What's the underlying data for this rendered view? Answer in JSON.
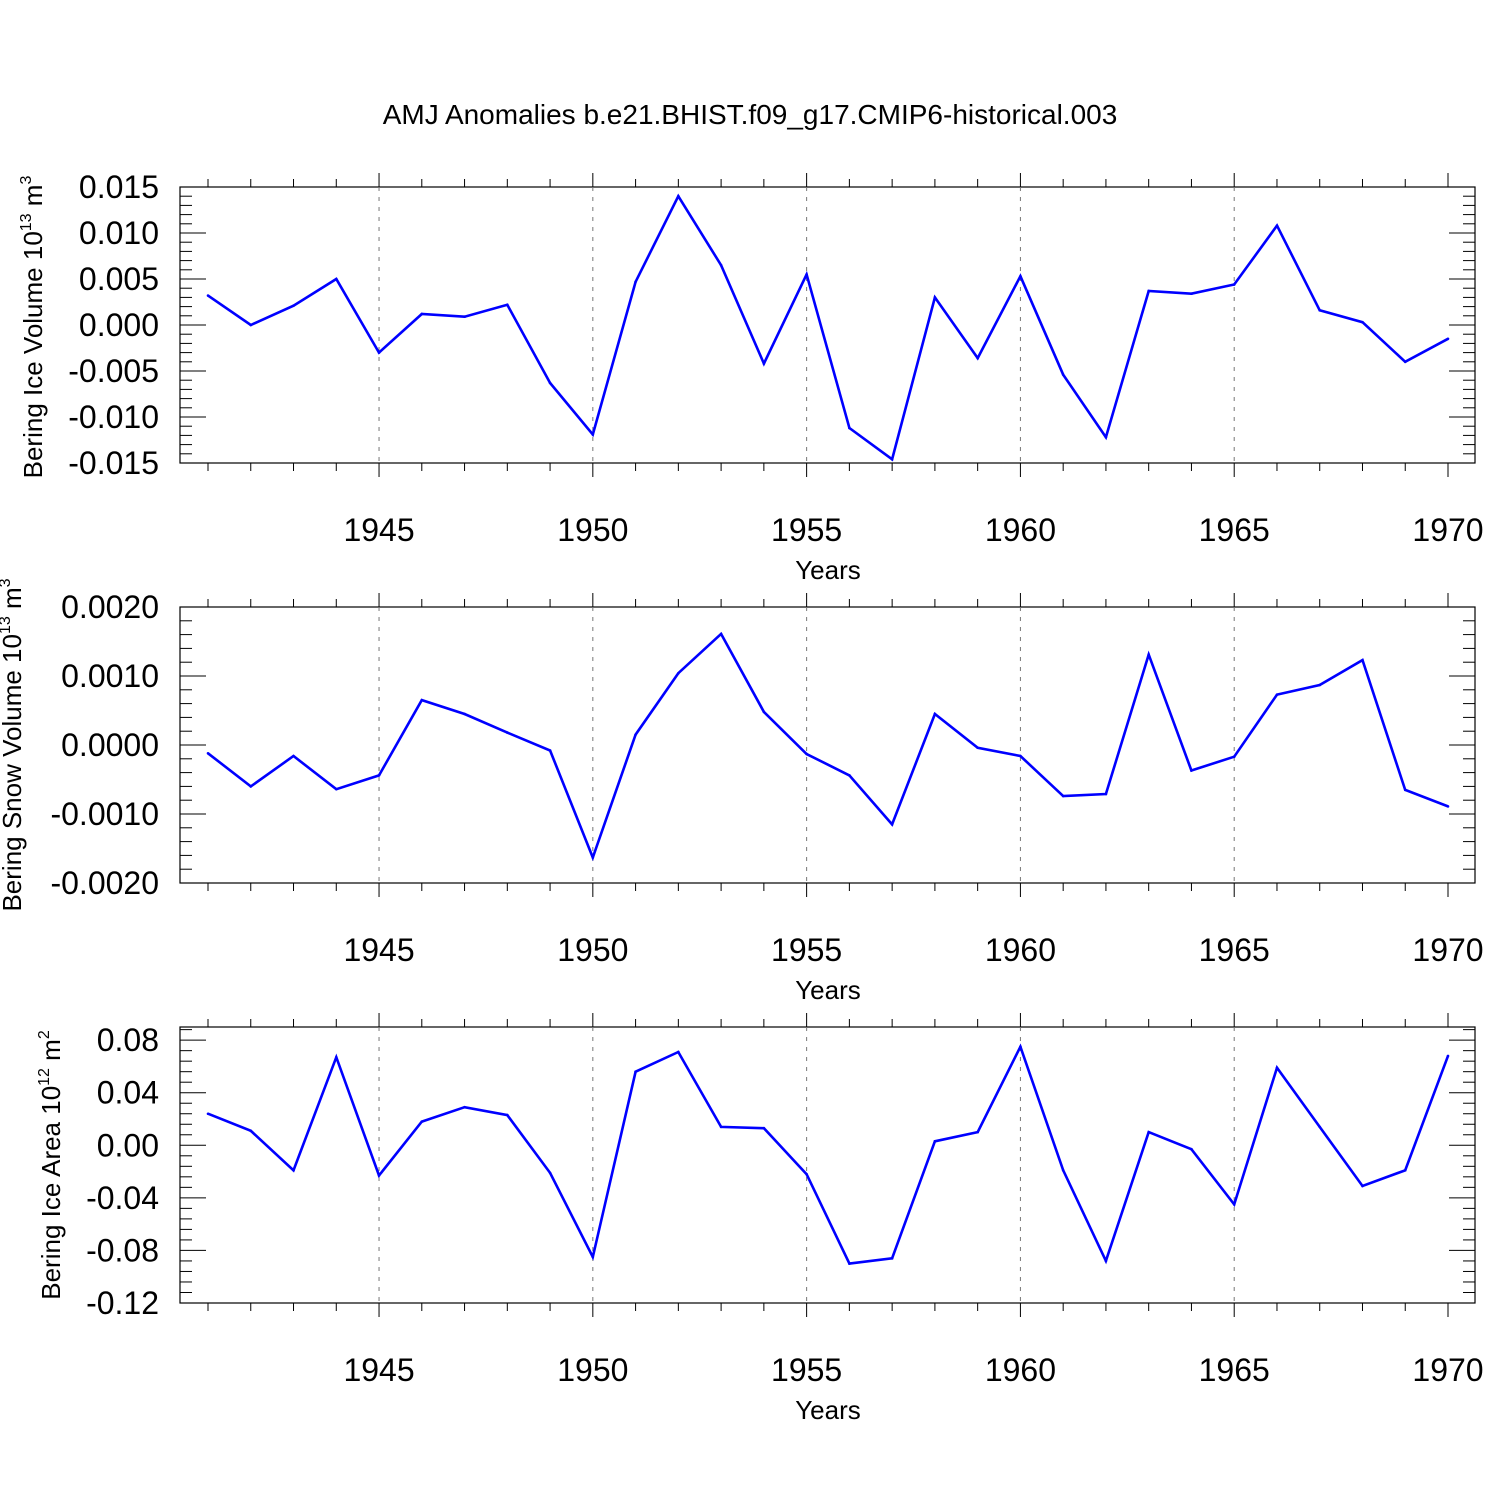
{
  "title": "AMJ Anomalies b.e21.BHIST.f09_g17.CMIP6-historical.003",
  "line_color": "#0000ff",
  "chart_data": [
    {
      "type": "line",
      "ylabel": {
        "text": "Bering Ice Volume 10",
        "exp": "13",
        "unit": " m",
        "unit_exp": "3"
      },
      "xlabel": "Years",
      "xlim": [
        1941,
        1970
      ],
      "ylim": [
        -0.015,
        0.015
      ],
      "grid": "vertical dashed at major x ticks",
      "x_ticks": [
        1945,
        1950,
        1955,
        1960,
        1965,
        1970
      ],
      "y_ticks": [
        "0.015",
        "0.010",
        "0.005",
        "0.000",
        "-0.005",
        "-0.010",
        "-0.015"
      ],
      "x": [
        1941,
        1942,
        1943,
        1944,
        1945,
        1946,
        1947,
        1948,
        1949,
        1950,
        1951,
        1952,
        1953,
        1954,
        1955,
        1956,
        1957,
        1958,
        1959,
        1960,
        1961,
        1962,
        1963,
        1964,
        1965,
        1966,
        1967,
        1968,
        1969,
        1970
      ],
      "values": [
        0.0032,
        0.0,
        0.0021,
        0.005,
        -0.003,
        0.0012,
        0.0009,
        0.0022,
        -0.0063,
        -0.0119,
        0.0047,
        0.014,
        0.0065,
        -0.0042,
        0.0055,
        -0.0112,
        -0.0146,
        0.003,
        -0.0036,
        0.0053,
        -0.0054,
        -0.0122,
        0.0037,
        0.0034,
        0.0044,
        0.0108,
        0.0016,
        0.0003,
        -0.004,
        -0.0015
      ]
    },
    {
      "type": "line",
      "ylabel": {
        "text": "Bering Snow Volume 10",
        "exp": "13",
        "unit": " m",
        "unit_exp": "3"
      },
      "xlabel": "Years",
      "xlim": [
        1941,
        1970
      ],
      "ylim": [
        -0.002,
        0.002
      ],
      "grid": "vertical dashed at major x ticks",
      "x_ticks": [
        1945,
        1950,
        1955,
        1960,
        1965,
        1970
      ],
      "y_ticks": [
        "0.0020",
        "0.0010",
        "0.0000",
        "-0.0010",
        "-0.0020"
      ],
      "x": [
        1941,
        1942,
        1943,
        1944,
        1945,
        1946,
        1947,
        1948,
        1949,
        1950,
        1951,
        1952,
        1953,
        1954,
        1955,
        1956,
        1957,
        1958,
        1959,
        1960,
        1961,
        1962,
        1963,
        1964,
        1965,
        1966,
        1967,
        1968,
        1969,
        1970
      ],
      "values": [
        -0.00012,
        -0.0006,
        -0.00016,
        -0.00064,
        -0.00044,
        0.00065,
        0.00045,
        0.00018,
        -8e-05,
        -0.00163,
        0.00015,
        0.00104,
        0.00161,
        0.00048,
        -0.00013,
        -0.00044,
        -0.00115,
        0.00045,
        -4e-05,
        -0.00016,
        -0.00074,
        -0.00071,
        0.00131,
        -0.00037,
        -0.00017,
        0.00073,
        0.00087,
        0.00123,
        -0.00065,
        -0.00089
      ]
    },
    {
      "type": "line",
      "ylabel": {
        "text": "Bering Ice Area 10",
        "exp": "12",
        "unit": " m",
        "unit_exp": "2"
      },
      "xlabel": "Years",
      "xlim": [
        1941,
        1970
      ],
      "ylim": [
        -0.12,
        0.09
      ],
      "grid": "vertical dashed at major x ticks",
      "x_ticks": [
        1945,
        1950,
        1955,
        1960,
        1965,
        1970
      ],
      "y_ticks": [
        "0.08",
        "0.04",
        "0.00",
        "-0.04",
        "-0.08",
        "-0.12"
      ],
      "x": [
        1941,
        1942,
        1943,
        1944,
        1945,
        1946,
        1947,
        1948,
        1949,
        1950,
        1951,
        1952,
        1953,
        1954,
        1955,
        1956,
        1957,
        1958,
        1959,
        1960,
        1961,
        1962,
        1963,
        1964,
        1965,
        1966,
        1967,
        1968,
        1969,
        1970
      ],
      "values": [
        0.024,
        0.011,
        -0.019,
        0.067,
        -0.023,
        0.018,
        0.029,
        0.023,
        -0.021,
        -0.085,
        0.056,
        0.071,
        0.014,
        0.013,
        -0.022,
        -0.09,
        -0.086,
        0.003,
        0.01,
        0.075,
        -0.019,
        -0.088,
        0.01,
        -0.003,
        -0.045,
        0.059,
        0.014,
        -0.031,
        -0.019,
        0.068
      ]
    }
  ]
}
